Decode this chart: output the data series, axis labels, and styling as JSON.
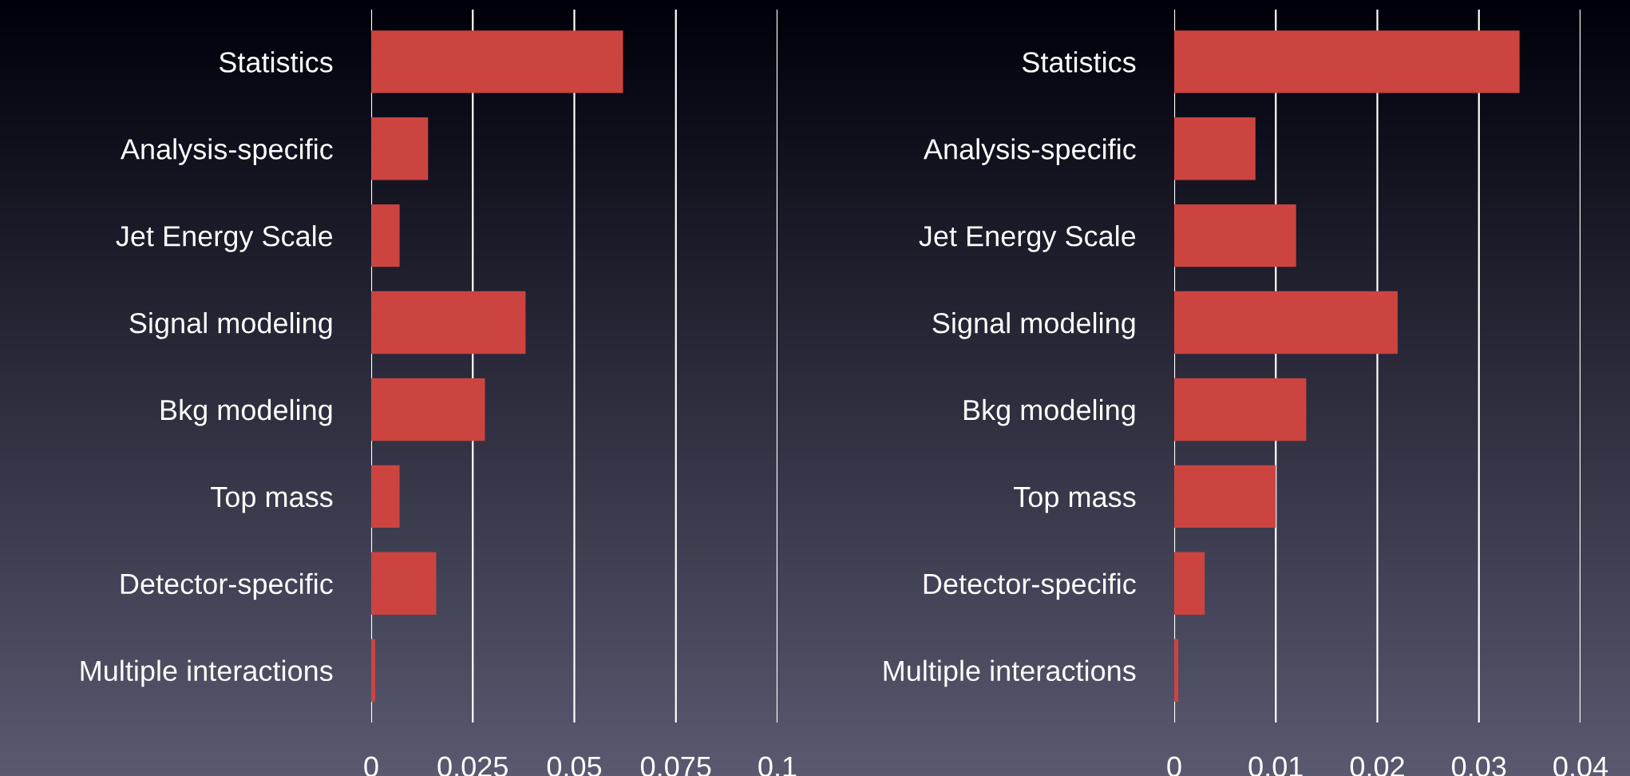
{
  "chart_data": [
    {
      "type": "bar",
      "orientation": "horizontal",
      "categories": [
        "Statistics",
        "Analysis-specific",
        "Jet Energy Scale",
        "Signal modeling",
        "Bkg modeling",
        "Top mass",
        "Detector-specific",
        "Multiple interactions"
      ],
      "values": [
        0.062,
        0.014,
        0.007,
        0.038,
        0.028,
        0.007,
        0.016,
        0.001
      ],
      "color": "#cc4440",
      "xlim": [
        0,
        0.1
      ],
      "xticks": [
        0,
        0.025,
        0.05,
        0.075,
        0.1
      ],
      "grid": "x"
    },
    {
      "type": "bar",
      "orientation": "horizontal",
      "categories": [
        "Statistics",
        "Analysis-specific",
        "Jet Energy Scale",
        "Signal modeling",
        "Bkg modeling",
        "Top mass",
        "Detector-specific",
        "Multiple interactions"
      ],
      "values": [
        0.034,
        0.008,
        0.012,
        0.022,
        0.013,
        0.01,
        0.003,
        0.0004
      ],
      "color": "#cc4440",
      "xlim": [
        0,
        0.04
      ],
      "xticks": [
        0,
        0.01,
        0.02,
        0.03,
        0.04
      ],
      "grid": "x"
    }
  ]
}
